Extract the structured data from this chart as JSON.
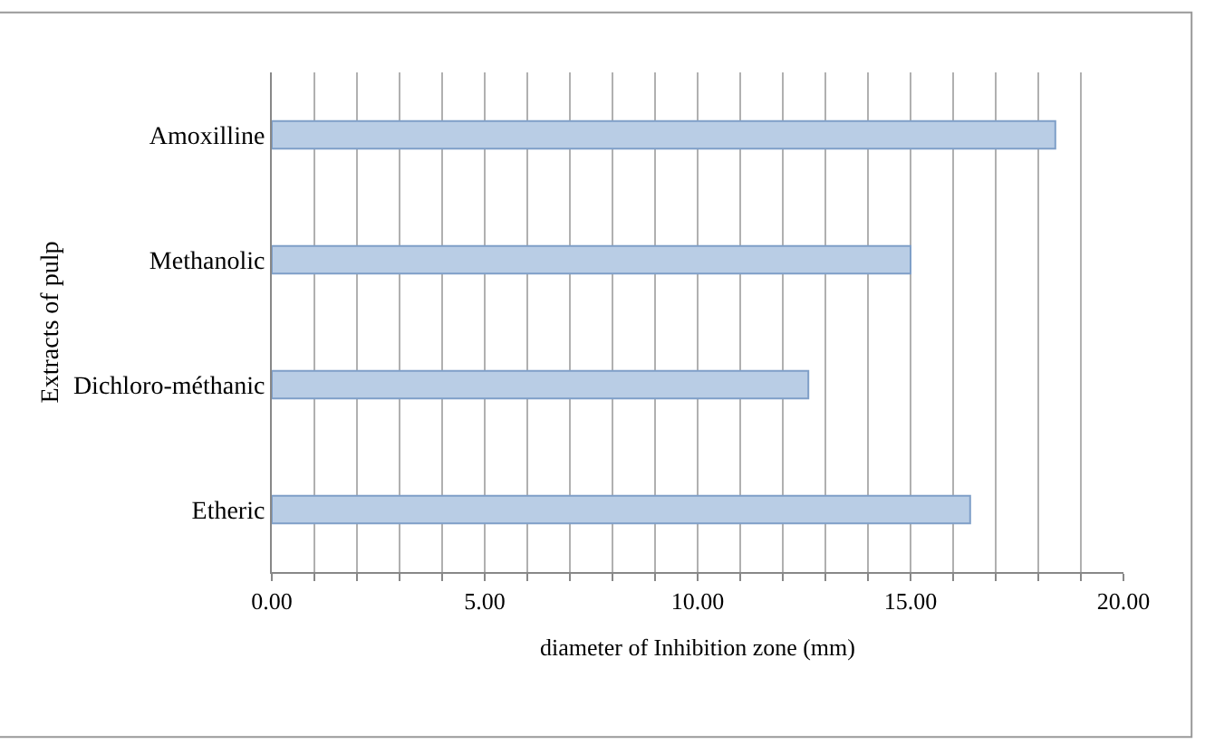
{
  "chart_data": {
    "type": "bar",
    "orientation": "horizontal",
    "categories": [
      "Amoxilline",
      "Methanolic",
      "Dichloro-méthanic",
      "Etheric"
    ],
    "values": [
      18.4,
      15.0,
      12.6,
      16.4
    ],
    "color": "#b9cde5",
    "xlabel": "diameter of Inhibition zone (mm)",
    "ylabel": "Extracts of pulp",
    "xlim": [
      0,
      20
    ],
    "xticks": [
      {
        "value": 0,
        "label": "0.00"
      },
      {
        "value": 1,
        "label": null
      },
      {
        "value": 2,
        "label": null
      },
      {
        "value": 3,
        "label": null
      },
      {
        "value": 4,
        "label": null
      },
      {
        "value": 5,
        "label": "5.00"
      },
      {
        "value": 6,
        "label": null
      },
      {
        "value": 7,
        "label": null
      },
      {
        "value": 8,
        "label": null
      },
      {
        "value": 9,
        "label": null
      },
      {
        "value": 10,
        "label": "10.00"
      },
      {
        "value": 11,
        "label": null
      },
      {
        "value": 12,
        "label": null
      },
      {
        "value": 13,
        "label": null
      },
      {
        "value": 14,
        "label": null
      },
      {
        "value": 15,
        "label": "15.00"
      },
      {
        "value": 16,
        "label": null
      },
      {
        "value": 17,
        "label": null
      },
      {
        "value": 18,
        "label": null
      },
      {
        "value": 19,
        "label": null
      },
      {
        "value": 20,
        "label": "20.00"
      }
    ],
    "grid": "x"
  }
}
